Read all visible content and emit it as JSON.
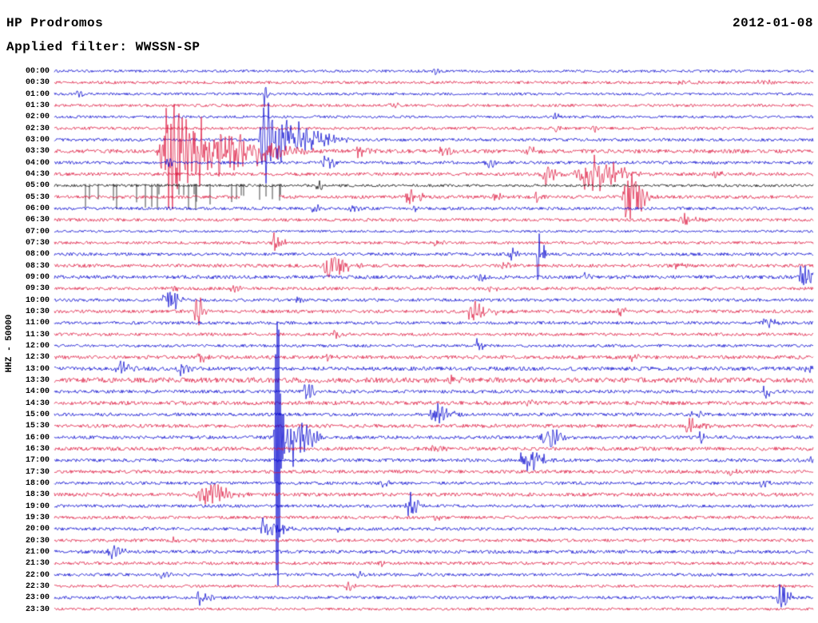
{
  "header": {
    "station": "HP Prodromos",
    "date": "2012-01-08",
    "filter": "Applied filter: WWSSN-SP"
  },
  "y_axis": {
    "label": "HHZ - 50000"
  },
  "chart_data": {
    "type": "line",
    "title": "HP Prodromos",
    "subtitle": "Applied filter: WWSSN-SP",
    "date": "2012-01-08",
    "ylabel": "HHZ - 50000",
    "row_interval_minutes": 30,
    "rows_per_day": 48,
    "legend": "none",
    "grid": false,
    "colors": {
      "blue": "#0000cd",
      "red": "#dc143c",
      "black": "#000000"
    },
    "rows": [
      {
        "time": "00:00",
        "color": "blue",
        "noise": 1.0,
        "events": [
          {
            "x": 0.5,
            "a": 4,
            "w": 0.004
          }
        ]
      },
      {
        "time": "00:30",
        "color": "red",
        "noise": 1.1,
        "events": [
          {
            "x": 0.82,
            "a": 3,
            "w": 0.01
          },
          {
            "x": 0.93,
            "a": 3,
            "w": 0.008
          }
        ]
      },
      {
        "time": "01:00",
        "color": "blue",
        "noise": 1.0,
        "events": [
          {
            "x": 0.277,
            "a": 15,
            "w": 0.002
          },
          {
            "x": 0.03,
            "a": 4,
            "w": 0.004
          }
        ]
      },
      {
        "time": "01:30",
        "color": "red",
        "noise": 1.1,
        "events": [
          {
            "x": 0.445,
            "a": 4,
            "w": 0.006
          }
        ]
      },
      {
        "time": "02:00",
        "color": "blue",
        "noise": 1.0,
        "events": [
          {
            "x": 0.66,
            "a": 3,
            "w": 0.006
          }
        ]
      },
      {
        "time": "02:30",
        "color": "red",
        "noise": 1.1,
        "events": [
          {
            "x": 0.655,
            "a": 5,
            "w": 0.005
          },
          {
            "x": 0.71,
            "a": 4,
            "w": 0.004
          }
        ]
      },
      {
        "time": "03:00",
        "color": "blue",
        "noise": 1.2,
        "events": [
          {
            "x": 0.277,
            "a": 38,
            "w": 0.012
          },
          {
            "x": 0.31,
            "a": 16,
            "w": 0.022
          }
        ]
      },
      {
        "time": "03:30",
        "color": "red",
        "noise": 1.5,
        "events": [
          {
            "x": 0.15,
            "a": 52,
            "w": 0.018
          },
          {
            "x": 0.2,
            "a": 22,
            "w": 0.04
          },
          {
            "x": 0.4,
            "a": 6,
            "w": 0.01
          },
          {
            "x": 0.51,
            "a": 5,
            "w": 0.008
          },
          {
            "x": 0.62,
            "a": 4,
            "w": 0.008
          }
        ]
      },
      {
        "time": "04:00",
        "color": "blue",
        "noise": 1.2,
        "events": [
          {
            "x": 0.355,
            "a": 9,
            "w": 0.006
          },
          {
            "x": 0.57,
            "a": 5,
            "w": 0.006
          },
          {
            "x": 0.15,
            "a": 6,
            "w": 0.004
          }
        ]
      },
      {
        "time": "04:30",
        "color": "red",
        "noise": 1.3,
        "events": [
          {
            "x": 0.645,
            "a": 10,
            "w": 0.008
          },
          {
            "x": 0.7,
            "a": 18,
            "w": 0.02
          },
          {
            "x": 0.87,
            "a": 4,
            "w": 0.006
          }
        ]
      },
      {
        "time": "05:00",
        "color": "black",
        "noise": 1.0,
        "events": [
          {
            "x": 0.345,
            "a": 6,
            "w": 0.004
          }
        ],
        "spikes": {
          "from": 0.04,
          "to": 0.3,
          "depth": 32,
          "density": 0.1
        }
      },
      {
        "time": "05:30",
        "color": "red",
        "noise": 1.3,
        "events": [
          {
            "x": 0.755,
            "a": 26,
            "w": 0.01
          },
          {
            "x": 0.465,
            "a": 9,
            "w": 0.008
          },
          {
            "x": 0.58,
            "a": 5,
            "w": 0.005
          },
          {
            "x": 0.635,
            "a": 6,
            "w": 0.004
          }
        ],
        "gap": {
          "from": 0.245,
          "to": 0.295
        }
      },
      {
        "time": "06:00",
        "color": "blue",
        "noise": 1.2,
        "events": [
          {
            "x": 0.34,
            "a": 6,
            "w": 0.006
          },
          {
            "x": 0.39,
            "a": 5,
            "w": 0.005
          },
          {
            "x": 0.475,
            "a": 5,
            "w": 0.004
          }
        ]
      },
      {
        "time": "06:30",
        "color": "red",
        "noise": 1.2,
        "events": [
          {
            "x": 0.83,
            "a": 6,
            "w": 0.008
          }
        ]
      },
      {
        "time": "07:00",
        "color": "blue",
        "noise": 0.9,
        "events": []
      },
      {
        "time": "07:30",
        "color": "red",
        "noise": 1.1,
        "events": [
          {
            "x": 0.29,
            "a": 10,
            "w": 0.005
          },
          {
            "x": 0.5,
            "a": 4,
            "w": 0.005
          }
        ]
      },
      {
        "time": "08:00",
        "color": "blue",
        "noise": 1.2,
        "events": [
          {
            "x": 0.638,
            "a": 40,
            "w": 0.0035
          },
          {
            "x": 0.6,
            "a": 6,
            "w": 0.006
          }
        ]
      },
      {
        "time": "08:30",
        "color": "red",
        "noise": 1.3,
        "events": [
          {
            "x": 0.36,
            "a": 14,
            "w": 0.012
          },
          {
            "x": 0.59,
            "a": 6,
            "w": 0.006
          },
          {
            "x": 0.82,
            "a": 4,
            "w": 0.006
          }
        ]
      },
      {
        "time": "09:00",
        "color": "blue",
        "noise": 1.4,
        "events": [
          {
            "x": 0.56,
            "a": 5,
            "w": 0.006
          },
          {
            "x": 0.985,
            "a": 12,
            "w": 0.008
          },
          {
            "x": 0.7,
            "a": 4,
            "w": 0.005
          }
        ]
      },
      {
        "time": "09:30",
        "color": "red",
        "noise": 1.2,
        "events": [
          {
            "x": 0.155,
            "a": 6,
            "w": 0.004
          },
          {
            "x": 0.234,
            "a": 6,
            "w": 0.004
          },
          {
            "x": 0.575,
            "a": 4,
            "w": 0.005
          }
        ]
      },
      {
        "time": "10:00",
        "color": "blue",
        "noise": 1.2,
        "events": [
          {
            "x": 0.147,
            "a": 17,
            "w": 0.007
          },
          {
            "x": 0.32,
            "a": 4,
            "w": 0.005
          }
        ]
      },
      {
        "time": "10:30",
        "color": "red",
        "noise": 1.3,
        "events": [
          {
            "x": 0.187,
            "a": 20,
            "w": 0.004
          },
          {
            "x": 0.55,
            "a": 12,
            "w": 0.012
          },
          {
            "x": 0.745,
            "a": 6,
            "w": 0.006
          }
        ]
      },
      {
        "time": "11:00",
        "color": "blue",
        "noise": 1.2,
        "events": [
          {
            "x": 0.935,
            "a": 8,
            "w": 0.007
          }
        ]
      },
      {
        "time": "11:30",
        "color": "red",
        "noise": 1.2,
        "events": [
          {
            "x": 0.37,
            "a": 5,
            "w": 0.006
          }
        ]
      },
      {
        "time": "12:00",
        "color": "blue",
        "noise": 1.1,
        "events": [
          {
            "x": 0.558,
            "a": 10,
            "w": 0.004
          }
        ]
      },
      {
        "time": "12:30",
        "color": "red",
        "noise": 1.4,
        "events": [
          {
            "x": 0.19,
            "a": 5,
            "w": 0.006
          },
          {
            "x": 0.36,
            "a": 4,
            "w": 0.006
          },
          {
            "x": 0.76,
            "a": 4,
            "w": 0.005
          }
        ]
      },
      {
        "time": "13:00",
        "color": "blue",
        "noise": 1.5,
        "events": [
          {
            "x": 0.085,
            "a": 7,
            "w": 0.008
          },
          {
            "x": 0.165,
            "a": 6,
            "w": 0.006
          },
          {
            "x": 0.99,
            "a": 5,
            "w": 0.004
          }
        ]
      },
      {
        "time": "13:30",
        "color": "red",
        "noise": 2.0,
        "events": [
          {
            "x": 0.52,
            "a": 5,
            "w": 0.008
          }
        ]
      },
      {
        "time": "14:00",
        "color": "blue",
        "noise": 1.3,
        "events": [
          {
            "x": 0.33,
            "a": 9,
            "w": 0.006
          },
          {
            "x": 0.935,
            "a": 8,
            "w": 0.004
          }
        ]
      },
      {
        "time": "14:30",
        "color": "red",
        "noise": 1.5,
        "events": [
          {
            "x": 0.62,
            "a": 4,
            "w": 0.006
          }
        ]
      },
      {
        "time": "15:00",
        "color": "blue",
        "noise": 1.3,
        "events": [
          {
            "x": 0.5,
            "a": 12,
            "w": 0.01
          },
          {
            "x": 0.84,
            "a": 5,
            "w": 0.005
          }
        ]
      },
      {
        "time": "15:30",
        "color": "red",
        "noise": 1.4,
        "events": [
          {
            "x": 0.835,
            "a": 9,
            "w": 0.008
          }
        ]
      },
      {
        "time": "16:00",
        "color": "blue",
        "noise": 1.3,
        "events": [
          {
            "x": 0.292,
            "a": 240,
            "w": 0.003
          },
          {
            "x": 0.31,
            "a": 40,
            "w": 0.012
          },
          {
            "x": 0.645,
            "a": 14,
            "w": 0.01
          },
          {
            "x": 0.85,
            "a": 7,
            "w": 0.006
          }
        ]
      },
      {
        "time": "16:30",
        "color": "red",
        "noise": 1.4,
        "events": [
          {
            "x": 0.5,
            "a": 4,
            "w": 0.006
          }
        ]
      },
      {
        "time": "17:00",
        "color": "blue",
        "noise": 1.3,
        "events": [
          {
            "x": 0.62,
            "a": 12,
            "w": 0.012
          },
          {
            "x": 0.99,
            "a": 6,
            "w": 0.004
          }
        ]
      },
      {
        "time": "17:30",
        "color": "red",
        "noise": 1.3,
        "events": [
          {
            "x": 0.89,
            "a": 4,
            "w": 0.006
          }
        ]
      },
      {
        "time": "18:00",
        "color": "blue",
        "noise": 1.2,
        "events": [
          {
            "x": 0.43,
            "a": 4,
            "w": 0.005
          },
          {
            "x": 0.93,
            "a": 5,
            "w": 0.005
          }
        ]
      },
      {
        "time": "18:30",
        "color": "red",
        "noise": 1.4,
        "events": [
          {
            "x": 0.197,
            "a": 14,
            "w": 0.014
          }
        ]
      },
      {
        "time": "19:00",
        "color": "blue",
        "noise": 1.2,
        "events": [
          {
            "x": 0.465,
            "a": 15,
            "w": 0.006
          }
        ]
      },
      {
        "time": "19:30",
        "color": "red",
        "noise": 1.2,
        "events": [
          {
            "x": 0.5,
            "a": 3,
            "w": 0.005
          }
        ]
      },
      {
        "time": "20:00",
        "color": "blue",
        "noise": 1.2,
        "events": [
          {
            "x": 0.276,
            "a": 11,
            "w": 0.012
          },
          {
            "x": 0.37,
            "a": 5,
            "w": 0.003
          }
        ]
      },
      {
        "time": "20:30",
        "color": "red",
        "noise": 1.2,
        "events": [
          {
            "x": 0.155,
            "a": 4,
            "w": 0.004
          }
        ]
      },
      {
        "time": "21:00",
        "color": "blue",
        "noise": 1.3,
        "events": [
          {
            "x": 0.075,
            "a": 8,
            "w": 0.008
          }
        ]
      },
      {
        "time": "21:30",
        "color": "red",
        "noise": 1.2,
        "events": [
          {
            "x": 0.43,
            "a": 4,
            "w": 0.004
          }
        ]
      },
      {
        "time": "22:00",
        "color": "blue",
        "noise": 1.2,
        "events": [
          {
            "x": 0.14,
            "a": 5,
            "w": 0.006
          },
          {
            "x": 0.4,
            "a": 3,
            "w": 0.004
          }
        ]
      },
      {
        "time": "22:30",
        "color": "red",
        "noise": 1.1,
        "events": [
          {
            "x": 0.386,
            "a": 5,
            "w": 0.004
          }
        ]
      },
      {
        "time": "23:00",
        "color": "blue",
        "noise": 1.2,
        "events": [
          {
            "x": 0.19,
            "a": 9,
            "w": 0.006
          },
          {
            "x": 0.955,
            "a": 16,
            "w": 0.006
          }
        ]
      },
      {
        "time": "23:30",
        "color": "red",
        "noise": 1.0,
        "events": []
      }
    ]
  }
}
